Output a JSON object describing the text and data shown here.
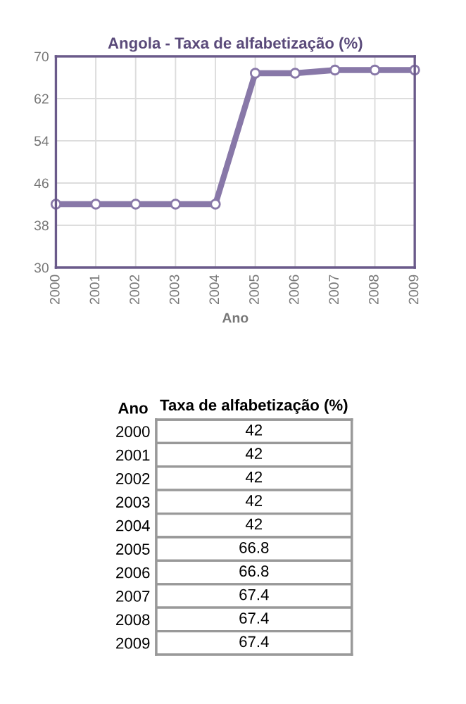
{
  "chart_data": [
    {
      "type": "line",
      "title": "Angola - Taxa de alfabetização (%)",
      "xlabel": "Ano",
      "categories": [
        "2000",
        "2001",
        "2002",
        "2003",
        "2004",
        "2005",
        "2006",
        "2007",
        "2008",
        "2009"
      ],
      "series": [
        {
          "color": "#8878a8",
          "values": [
            42,
            42,
            42,
            42,
            42,
            66.8,
            66.8,
            67.4,
            67.4,
            67.4
          ]
        }
      ],
      "ylim": [
        30,
        70
      ],
      "yticks": [
        30,
        38,
        46,
        54,
        62,
        70
      ],
      "grid": true,
      "marker": "circle",
      "line_style": "solid"
    },
    {
      "type": "heatmap",
      "ylabel": "Ano",
      "categories": [
        "Taxa de alfabetização (%)"
      ],
      "y_categories": [
        "2000",
        "2001",
        "2002",
        "2003",
        "2004",
        "2005",
        "2006",
        "2007",
        "2008",
        "2009"
      ],
      "cells": [
        [
          42
        ],
        [
          42
        ],
        [
          42
        ],
        [
          42
        ],
        [
          42
        ],
        [
          66.8
        ],
        [
          66.8
        ],
        [
          67.4
        ],
        [
          67.4
        ],
        [
          67.4
        ]
      ],
      "data_labels": true
    }
  ]
}
